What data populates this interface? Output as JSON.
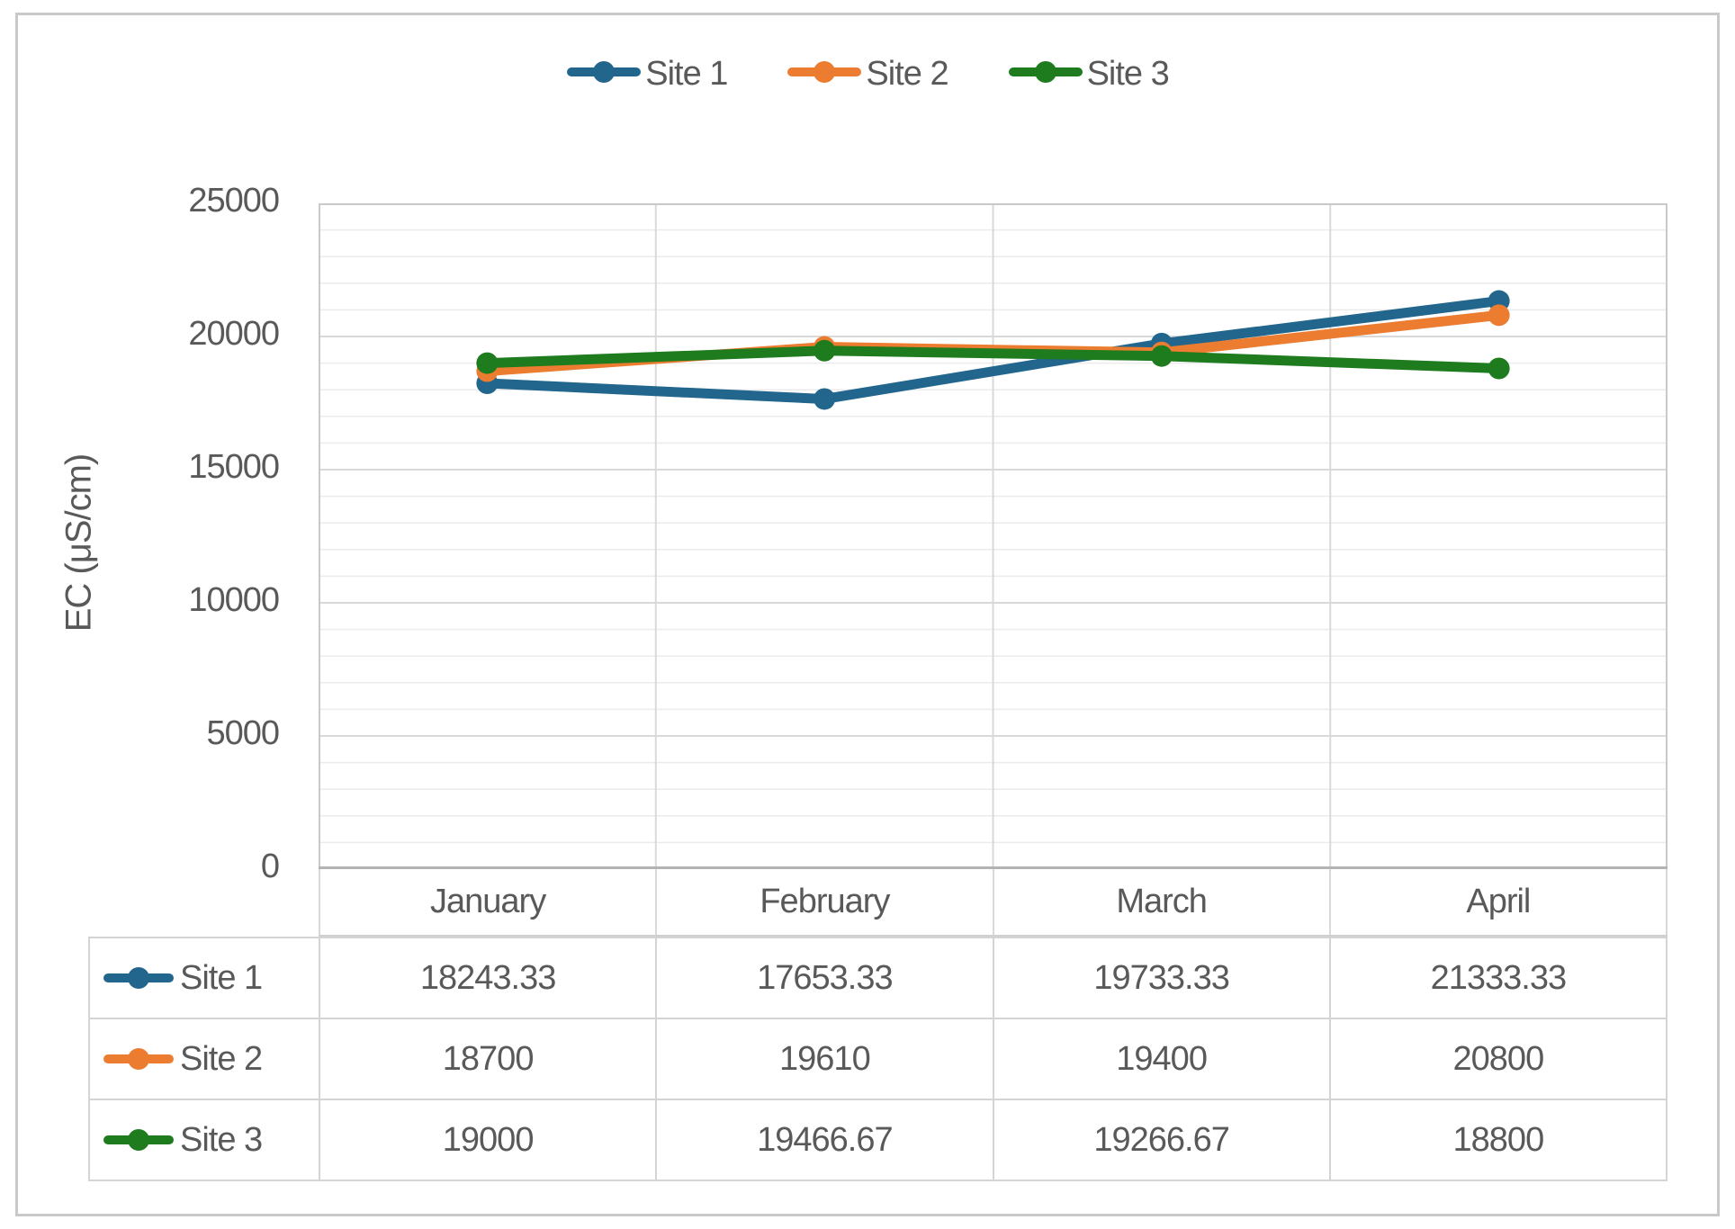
{
  "colors": {
    "site1": "#23668D",
    "site2": "#EC7C30",
    "site3": "#1E7B1E",
    "text": "#595959",
    "grid_major": "#d9d9d9",
    "grid_minor": "#ebebeb",
    "axis_line": "#b3b3b3",
    "plot_border": "#c9c9c9"
  },
  "legend": {
    "items": [
      {
        "label": "Site 1",
        "color": "#23668D"
      },
      {
        "label": "Site 2",
        "color": "#EC7C30"
      },
      {
        "label": "Site 3",
        "color": "#1E7B1E"
      }
    ]
  },
  "y_axis": {
    "title": "EC (μS/cm)",
    "ticks": [
      "25000",
      "20000",
      "15000",
      "10000",
      "5000",
      "0"
    ]
  },
  "chart_data": {
    "type": "line",
    "title": "",
    "xlabel": "",
    "ylabel": "EC (μS/cm)",
    "categories": [
      "January",
      "February",
      "March",
      "April"
    ],
    "series": [
      {
        "name": "Site 1",
        "color": "#23668D",
        "values": [
          18243.33,
          17653.33,
          19733.33,
          21333.33
        ]
      },
      {
        "name": "Site 2",
        "color": "#EC7C30",
        "values": [
          18700,
          19610,
          19400,
          20800
        ]
      },
      {
        "name": "Site 3",
        "color": "#1E7B1E",
        "values": [
          19000,
          19466.67,
          19266.67,
          18800
        ]
      }
    ],
    "ylim": [
      0,
      25000
    ],
    "y_major_unit": 5000,
    "y_minor_unit": 1000,
    "grid": true,
    "legend_position": "top",
    "marker": "circle",
    "data_table_shown": true
  },
  "table": {
    "rows": [
      {
        "label": "Site 1",
        "values": [
          "18243.33",
          "17653.33",
          "19733.33",
          "21333.33"
        ]
      },
      {
        "label": "Site 2",
        "values": [
          "18700",
          "19610",
          "19400",
          "20800"
        ]
      },
      {
        "label": "Site 3",
        "values": [
          "19000",
          "19466.67",
          "19266.67",
          "18800"
        ]
      }
    ]
  }
}
